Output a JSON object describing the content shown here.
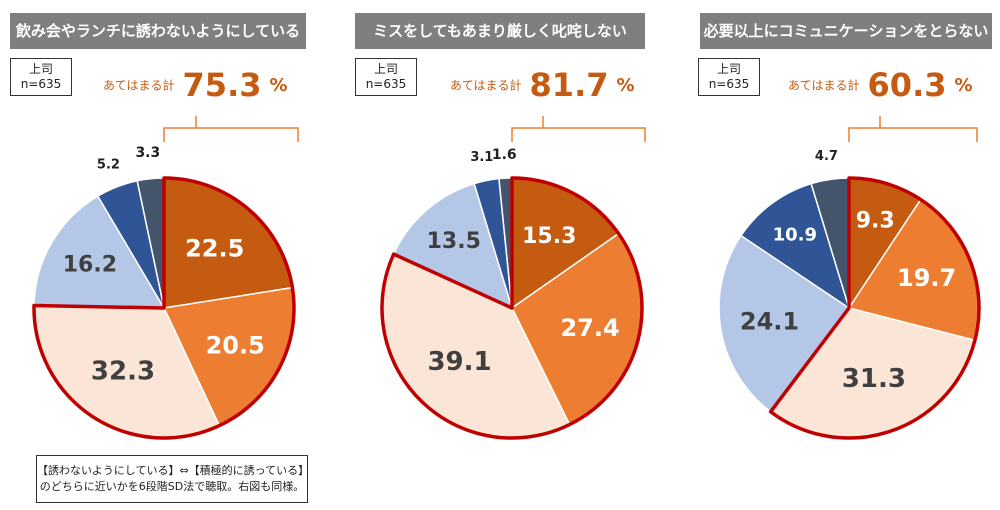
{
  "base": {
    "line1": "上司",
    "line2": "n=635"
  },
  "agg_label": "あてはまる計",
  "pct_unit": "%",
  "colors": [
    "#c55a11",
    "#ed7d31",
    "#fbe5d6",
    "#b4c7e7",
    "#2f5597",
    "#44546a"
  ],
  "highlight_color": "#c00000",
  "note": {
    "line1": "【誘わないようにしている】⇔【積極的に誘っている】",
    "line2": "のどちらに近いかを6段階SD法で聴取。右図も同様。"
  },
  "chart_data": [
    {
      "type": "pie",
      "title": "飲み会やランチに誘わないようにしている",
      "agg_value": "75.3",
      "values": [
        22.5,
        20.5,
        32.3,
        16.2,
        5.2,
        3.3
      ],
      "labels": [
        "22.5",
        "20.5",
        "32.3",
        "16.2",
        "5.2",
        "3.3"
      ]
    },
    {
      "type": "pie",
      "title": "ミスをしてもあまり厳しく叱咤しない",
      "agg_value": "81.7",
      "values": [
        15.3,
        27.4,
        39.1,
        13.5,
        3.1,
        1.6
      ],
      "labels": [
        "15.3",
        "27.4",
        "39.1",
        "13.5",
        "3.1",
        "1.6"
      ]
    },
    {
      "type": "pie",
      "title": "必要以上にコミュニケーションをとらない",
      "agg_value": "60.3",
      "values": [
        9.3,
        19.7,
        31.3,
        24.1,
        10.9,
        4.7
      ],
      "labels": [
        "9.3",
        "19.7",
        "31.3",
        "24.1",
        "10.9",
        "4.7"
      ]
    }
  ]
}
